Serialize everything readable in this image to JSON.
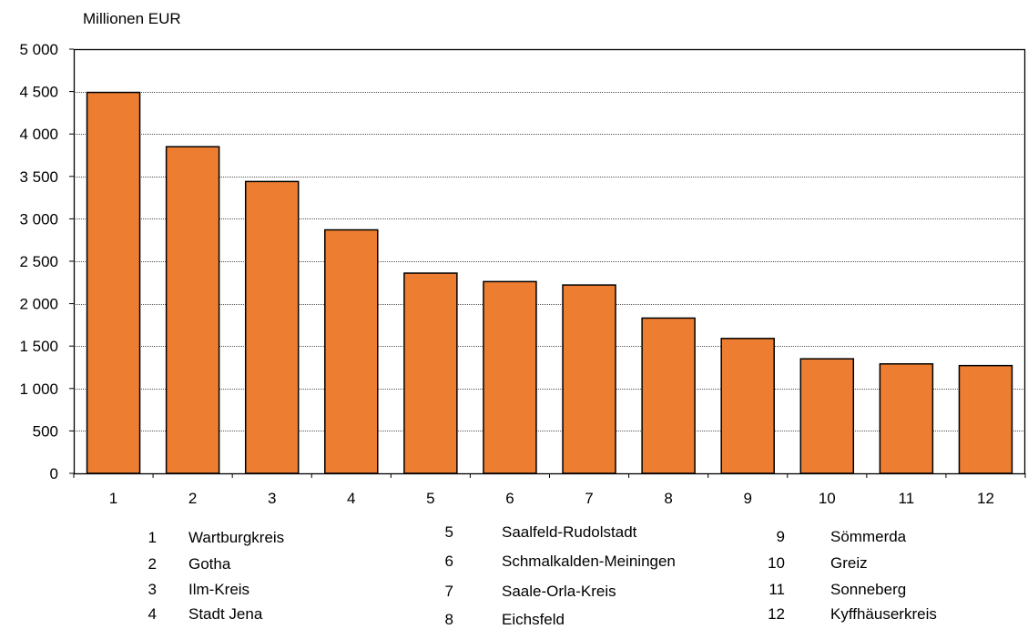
{
  "chart_data": {
    "type": "bar",
    "unit_label": "Millionen EUR",
    "categories": [
      "1",
      "2",
      "3",
      "4",
      "5",
      "6",
      "7",
      "8",
      "9",
      "10",
      "11",
      "12"
    ],
    "values": [
      4490,
      3850,
      3440,
      2870,
      2360,
      2260,
      2220,
      1830,
      1590,
      1350,
      1290,
      1270
    ],
    "ylim": [
      0,
      5000
    ],
    "yticks": [
      0,
      500,
      1000,
      1500,
      2000,
      2500,
      3000,
      3500,
      4000,
      4500,
      5000
    ],
    "ytick_labels": [
      "0",
      "500",
      "1 000",
      "1 500",
      "2 000",
      "2 500",
      "3 000",
      "3 500",
      "4 000",
      "4 500",
      "5 000"
    ],
    "grid": true,
    "bar_color": "#ED7D31",
    "legend": [
      {
        "num": "1",
        "name": "Wartburgkreis"
      },
      {
        "num": "2",
        "name": "Gotha"
      },
      {
        "num": "3",
        "name": "Ilm-Kreis"
      },
      {
        "num": "4",
        "name": "Stadt Jena"
      },
      {
        "num": "5",
        "name": "Saalfeld-Rudolstadt"
      },
      {
        "num": "6",
        "name": "Schmalkalden-Meiningen"
      },
      {
        "num": "7",
        "name": "Saale-Orla-Kreis"
      },
      {
        "num": "8",
        "name": "Eichsfeld"
      },
      {
        "num": "9",
        "name": "Sömmerda"
      },
      {
        "num": "10",
        "name": "Greiz"
      },
      {
        "num": "11",
        "name": "Sonneberg"
      },
      {
        "num": "12",
        "name": "Kyffhäuserkreis"
      }
    ]
  }
}
